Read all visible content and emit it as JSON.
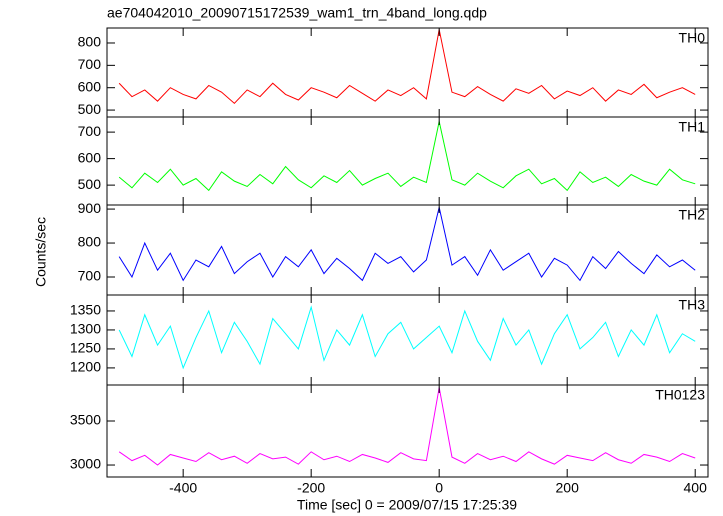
{
  "chart_data": {
    "type": "line",
    "title": "ae704042010_20090715172539_wam1_trn_4band_long.qdp",
    "xlabel": "Time [sec] 0 = 2009/07/15 17:25:39",
    "ylabel": "Counts/sec",
    "xlim": [
      -519,
      420
    ],
    "xticks": [
      -400,
      -200,
      0,
      200,
      400
    ],
    "x": [
      -500,
      -480,
      -460,
      -440,
      -420,
      -400,
      -380,
      -360,
      -340,
      -320,
      -300,
      -280,
      -260,
      -240,
      -220,
      -200,
      -180,
      -160,
      -140,
      -120,
      -100,
      -80,
      -60,
      -40,
      -20,
      0,
      20,
      40,
      60,
      80,
      100,
      120,
      140,
      160,
      180,
      200,
      220,
      240,
      260,
      280,
      300,
      320,
      340,
      360,
      380,
      400
    ],
    "panels": [
      {
        "label": "TH0",
        "color": "#ff0000",
        "ylim": [
          469,
          867
        ],
        "yticks": [
          500,
          600,
          700,
          800
        ],
        "values": [
          620,
          560,
          590,
          540,
          600,
          570,
          550,
          610,
          580,
          530,
          590,
          560,
          620,
          570,
          545,
          600,
          580,
          555,
          610,
          575,
          540,
          590,
          565,
          600,
          550,
          860,
          580,
          560,
          605,
          570,
          540,
          595,
          575,
          610,
          550,
          585,
          565,
          600,
          540,
          590,
          570,
          615,
          555,
          580,
          600,
          570
        ]
      },
      {
        "label": "TH1",
        "color": "#00ff00",
        "ylim": [
          425,
          757
        ],
        "yticks": [
          500,
          600,
          700
        ],
        "values": [
          530,
          490,
          545,
          510,
          560,
          500,
          525,
          480,
          550,
          515,
          495,
          540,
          505,
          570,
          520,
          490,
          535,
          510,
          555,
          500,
          525,
          545,
          495,
          530,
          510,
          740,
          520,
          500,
          545,
          515,
          490,
          535,
          560,
          505,
          525,
          480,
          550,
          510,
          530,
          495,
          540,
          515,
          500,
          560,
          520,
          505
        ]
      },
      {
        "label": "TH2",
        "color": "#0000ff",
        "ylim": [
          647,
          912
        ],
        "yticks": [
          700,
          800,
          900
        ],
        "values": [
          760,
          700,
          800,
          720,
          770,
          690,
          750,
          730,
          790,
          710,
          745,
          770,
          700,
          760,
          730,
          780,
          710,
          755,
          725,
          690,
          770,
          740,
          760,
          715,
          750,
          905,
          735,
          760,
          705,
          780,
          720,
          745,
          770,
          700,
          755,
          735,
          690,
          760,
          725,
          775,
          740,
          710,
          765,
          730,
          750,
          720
        ]
      },
      {
        "label": "TH3",
        "color": "#00ffff",
        "ylim": [
          1155,
          1392
        ],
        "yticks": [
          1200,
          1250,
          1300,
          1350
        ],
        "values": [
          1300,
          1230,
          1340,
          1260,
          1310,
          1200,
          1280,
          1350,
          1240,
          1320,
          1270,
          1210,
          1330,
          1290,
          1250,
          1360,
          1220,
          1300,
          1260,
          1340,
          1230,
          1290,
          1320,
          1250,
          1280,
          1310,
          1240,
          1350,
          1270,
          1220,
          1330,
          1260,
          1300,
          1210,
          1290,
          1340,
          1250,
          1280,
          1320,
          1230,
          1300,
          1260,
          1340,
          1240,
          1290,
          1270
        ]
      },
      {
        "label": "TH0123",
        "color": "#ff00ff",
        "ylim": [
          2864,
          3909
        ],
        "yticks": [
          3000,
          3500
        ],
        "values": [
          3150,
          3050,
          3110,
          3000,
          3120,
          3080,
          3040,
          3140,
          3060,
          3100,
          3020,
          3130,
          3070,
          3090,
          3010,
          3150,
          3060,
          3100,
          3040,
          3120,
          3080,
          3030,
          3140,
          3070,
          3050,
          3880,
          3090,
          3020,
          3130,
          3060,
          3100,
          3040,
          3150,
          3070,
          3010,
          3110,
          3080,
          3050,
          3140,
          3060,
          3020,
          3120,
          3090,
          3040,
          3130,
          3080
        ]
      }
    ]
  }
}
